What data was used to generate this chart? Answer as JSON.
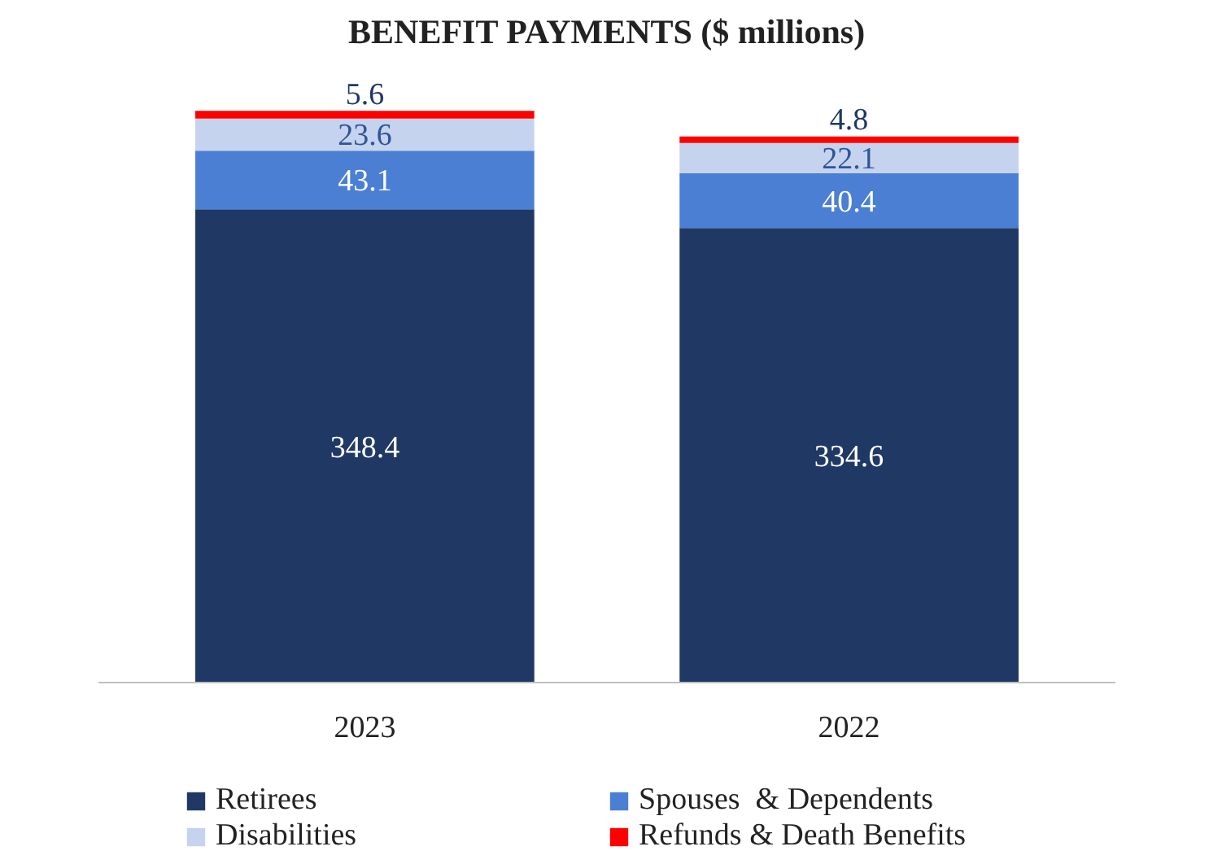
{
  "chart_data": {
    "type": "bar",
    "title": "BENEFIT PAYMENTS ($ millions)",
    "categories": [
      "2023",
      "2022"
    ],
    "stacked": true,
    "data_labels": true,
    "legend": "bottom",
    "grid": false,
    "series": [
      {
        "name": "Retirees",
        "color": "#1f3864",
        "values": [
          348.4,
          334.6
        ]
      },
      {
        "name": "Spouses  & Dependents",
        "color": "#4a7fd4",
        "values": [
          43.1,
          40.4
        ]
      },
      {
        "name": "Disabilities",
        "color": "#c5d3ee",
        "values": [
          23.6,
          22.1
        ]
      },
      {
        "name": "Refunds & Death Benefits",
        "color": "#ff0000",
        "values": [
          5.6,
          4.8
        ]
      }
    ]
  }
}
